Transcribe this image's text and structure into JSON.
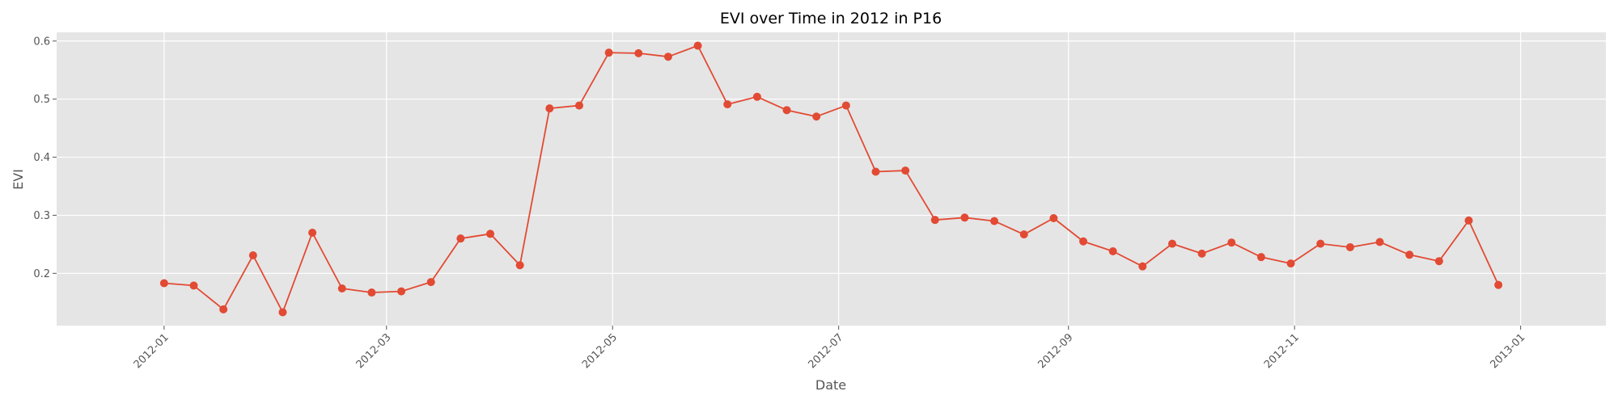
{
  "chart_data": {
    "type": "line",
    "title": "EVI over Time in 2012 in P16",
    "xlabel": "Date",
    "ylabel": "EVI",
    "xlim": [
      "2011-12-03",
      "2013-01-24"
    ],
    "ylim": [
      0.11,
      0.615
    ],
    "grid": true,
    "x_ticks": [
      "2012-01-01",
      "2012-03-01",
      "2012-05-01",
      "2012-07-01",
      "2012-09-01",
      "2012-11-01",
      "2013-01-01"
    ],
    "x_tick_labels": [
      "2012-01",
      "2012-03",
      "2012-05",
      "2012-07",
      "2012-09",
      "2012-11",
      "2013-01"
    ],
    "y_ticks": [
      0.2,
      0.3,
      0.4,
      0.5,
      0.6
    ],
    "y_tick_labels": [
      "0.2",
      "0.3",
      "0.4",
      "0.5",
      "0.6"
    ],
    "series": [
      {
        "color": "#E24A33",
        "x": [
          "2012-01-01",
          "2012-01-09",
          "2012-01-17",
          "2012-01-25",
          "2012-02-02",
          "2012-02-10",
          "2012-02-18",
          "2012-02-26",
          "2012-03-05",
          "2012-03-13",
          "2012-03-21",
          "2012-03-29",
          "2012-04-06",
          "2012-04-14",
          "2012-04-22",
          "2012-04-30",
          "2012-05-08",
          "2012-05-16",
          "2012-05-24",
          "2012-06-01",
          "2012-06-09",
          "2012-06-17",
          "2012-06-25",
          "2012-07-03",
          "2012-07-11",
          "2012-07-19",
          "2012-07-27",
          "2012-08-04",
          "2012-08-12",
          "2012-08-20",
          "2012-08-28",
          "2012-09-05",
          "2012-09-13",
          "2012-09-21",
          "2012-09-29",
          "2012-10-07",
          "2012-10-15",
          "2012-10-23",
          "2012-10-31",
          "2012-11-08",
          "2012-11-16",
          "2012-11-24",
          "2012-12-02",
          "2012-12-10",
          "2012-12-18",
          "2012-12-26"
        ],
        "y": [
          0.183,
          0.179,
          0.138,
          0.231,
          0.133,
          0.27,
          0.174,
          0.167,
          0.169,
          0.185,
          0.26,
          0.268,
          0.214,
          0.484,
          0.489,
          0.58,
          0.579,
          0.573,
          0.592,
          0.491,
          0.504,
          0.481,
          0.47,
          0.489,
          0.375,
          0.377,
          0.292,
          0.296,
          0.29,
          0.267,
          0.295,
          0.255,
          0.238,
          0.212,
          0.251,
          0.234,
          0.253,
          0.228,
          0.217,
          0.251,
          0.245,
          0.254,
          0.232,
          0.221,
          0.291,
          0.18
        ]
      }
    ]
  }
}
